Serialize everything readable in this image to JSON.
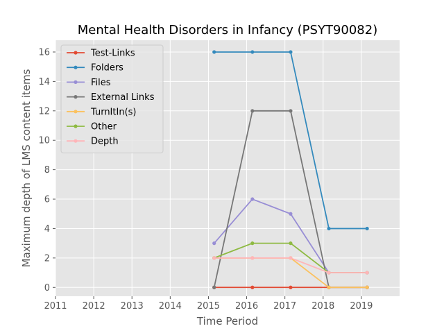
{
  "chart_data": {
    "type": "line",
    "title": "Mental Health Disorders in Infancy (PSYT90082)",
    "xlabel": "Time Period",
    "ylabel": "Maximum depth of LMS content items",
    "xlim": [
      2011,
      2020
    ],
    "ylim": [
      -0.6,
      16.8
    ],
    "x_ticks": [
      "2011",
      "2012",
      "2013",
      "2014",
      "2015",
      "2016",
      "2017",
      "2018",
      "2019"
    ],
    "y_ticks": [
      "0",
      "2",
      "4",
      "6",
      "8",
      "10",
      "12",
      "14",
      "16"
    ],
    "grid": true,
    "legend_position": "upper-left",
    "x": [
      2015.15,
      2016.15,
      2017.15,
      2018.15,
      2019.15
    ],
    "series": [
      {
        "name": "Test-Links",
        "color": "#E24A33",
        "values": [
          0,
          0,
          0,
          0,
          0
        ]
      },
      {
        "name": "Folders",
        "color": "#348ABD",
        "values": [
          16,
          16,
          16,
          4,
          4
        ]
      },
      {
        "name": "Files",
        "color": "#988ED5",
        "values": [
          3,
          6,
          5,
          1,
          1
        ]
      },
      {
        "name": "External Links",
        "color": "#777777",
        "values": [
          0,
          12,
          12,
          0,
          0
        ]
      },
      {
        "name": "TurnItIn(s)",
        "color": "#FBC15E",
        "values": [
          2,
          2,
          2,
          0,
          0
        ]
      },
      {
        "name": "Other",
        "color": "#8EBA42",
        "values": [
          2,
          3,
          3,
          1,
          1
        ]
      },
      {
        "name": "Depth",
        "color": "#FFB5B8",
        "values": [
          2,
          2,
          2,
          1,
          1
        ]
      }
    ]
  }
}
